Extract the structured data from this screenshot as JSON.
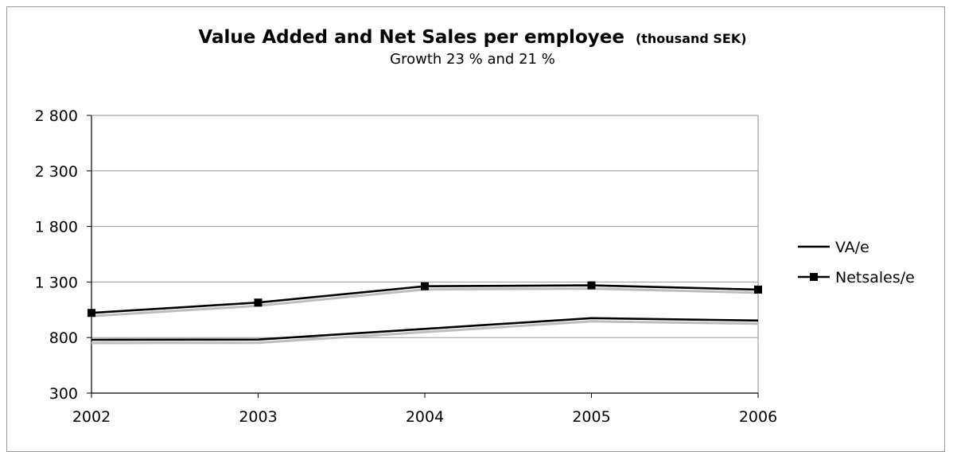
{
  "chart_data": {
    "type": "line",
    "title": "Value Added and Net Sales per employee",
    "title_unit": "(thousand SEK)",
    "subtitle": "Growth 23 % and 21 %",
    "x": [
      "2002",
      "2003",
      "2004",
      "2005",
      "2006"
    ],
    "ylim": [
      300,
      2800
    ],
    "yticks": [
      300,
      800,
      1300,
      1800,
      2300,
      2800
    ],
    "ytick_labels": [
      "300",
      "800",
      "1 300",
      "1 800",
      "2 300",
      "2 800"
    ],
    "grid": true,
    "legend_position": "right",
    "series": [
      {
        "name": "VA/e",
        "values": [
          780,
          782,
          878,
          975,
          953
        ],
        "marker": "none",
        "color": "#000000"
      },
      {
        "name": "Netsales/e",
        "values": [
          1022,
          1115,
          1262,
          1270,
          1232
        ],
        "marker": "square",
        "color": "#000000"
      }
    ]
  }
}
